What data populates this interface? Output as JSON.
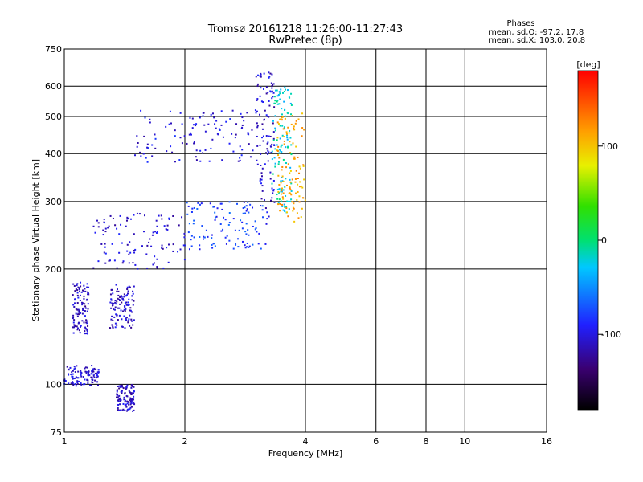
{
  "chart_data": {
    "type": "scatter",
    "title": "Tromsø 20161218 11:26:00-11:27:43",
    "subtitle": "RwPretec (8p)",
    "xlabel": "Frequency [MHz]",
    "ylabel": "Stationary phase Virtual Height [km]",
    "x_scale": "log",
    "y_scale": "log",
    "xlim": [
      1,
      16
    ],
    "ylim": [
      75,
      750
    ],
    "x_ticks": [
      1,
      2,
      4,
      6,
      8,
      10,
      16
    ],
    "x_tick_labels": [
      "1",
      "2",
      "4",
      "6",
      "8",
      "10",
      "16"
    ],
    "x_grid": [
      2,
      4,
      6,
      8,
      10
    ],
    "y_ticks": [
      75,
      100,
      200,
      300,
      400,
      500,
      600,
      750
    ],
    "y_tick_labels": [
      "75",
      "100",
      "200",
      "300",
      "400",
      "500",
      "600",
      "750"
    ],
    "y_grid": [
      100,
      200,
      300,
      400,
      500,
      600
    ],
    "grid": true,
    "stats": {
      "heading": "Phases",
      "line_o": "mean, sd,O: -97.2, 17.8",
      "line_x": "mean, sd,X: 103.0, 20.8"
    },
    "colorbar": {
      "label": "[deg]",
      "range": [
        -180,
        180
      ],
      "ticks": [
        100,
        0,
        -100
      ],
      "tick_labels": [
        "100",
        "0",
        "-100"
      ]
    },
    "color_encoding": "phase (deg)",
    "echo_groups": [
      {
        "f": [
          1.0,
          1.22
        ],
        "h": [
          99,
          112
        ],
        "phase": -105
      },
      {
        "f": [
          1.05,
          1.15
        ],
        "h": [
          135,
          185
        ],
        "phase": -110
      },
      {
        "f": [
          1.3,
          1.5
        ],
        "h": [
          140,
          182
        ],
        "phase": -108
      },
      {
        "f": [
          1.35,
          1.5
        ],
        "h": [
          85,
          100
        ],
        "phase": -110
      },
      {
        "f": [
          1.18,
          2.0
        ],
        "h": [
          200,
          280
        ],
        "phase": -105
      },
      {
        "f": [
          1.5,
          3.0
        ],
        "h": [
          380,
          520
        ],
        "phase": -100
      },
      {
        "f": [
          2.0,
          3.2
        ],
        "h": [
          225,
          300
        ],
        "phase": -80
      },
      {
        "f": [
          3.0,
          3.35
        ],
        "h": [
          270,
          660
        ],
        "phase": -105
      },
      {
        "f": [
          3.3,
          3.7
        ],
        "h": [
          280,
          600
        ],
        "phase": -20
      },
      {
        "f": [
          3.4,
          4.0
        ],
        "h": [
          265,
          510
        ],
        "phase": 110
      }
    ]
  }
}
